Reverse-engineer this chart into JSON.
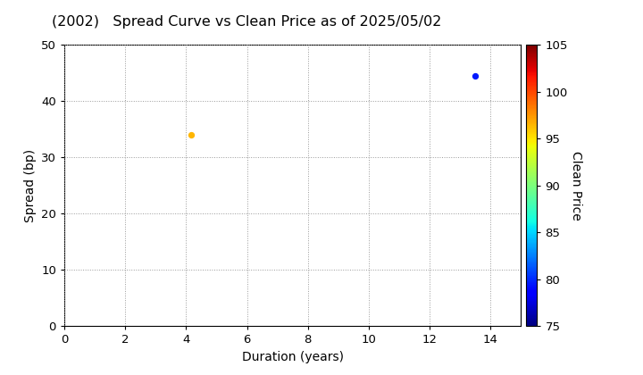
{
  "title": "(2002)   Spread Curve vs Clean Price as of 2025/05/02",
  "xlabel": "Duration (years)",
  "ylabel": "Spread (bp)",
  "colorbar_label": "Clean Price",
  "xlim": [
    0,
    15
  ],
  "ylim": [
    0,
    50
  ],
  "xticks": [
    0,
    2,
    4,
    6,
    8,
    10,
    12,
    14
  ],
  "yticks": [
    0,
    10,
    20,
    30,
    40,
    50
  ],
  "colorbar_min": 75,
  "colorbar_max": 105,
  "colorbar_ticks": [
    75,
    80,
    85,
    90,
    95,
    100,
    105
  ],
  "points": [
    {
      "duration": 4.15,
      "spread": 34.0,
      "clean_price": 96.5
    },
    {
      "duration": 13.5,
      "spread": 44.5,
      "clean_price": 79.5
    }
  ],
  "point_size": 18,
  "background_color": "#ffffff",
  "grid_color": "#999999",
  "title_fontsize": 11.5,
  "axis_label_fontsize": 10,
  "tick_fontsize": 9.5,
  "colorbar_tick_fontsize": 9.5,
  "colorbar_label_fontsize": 10
}
